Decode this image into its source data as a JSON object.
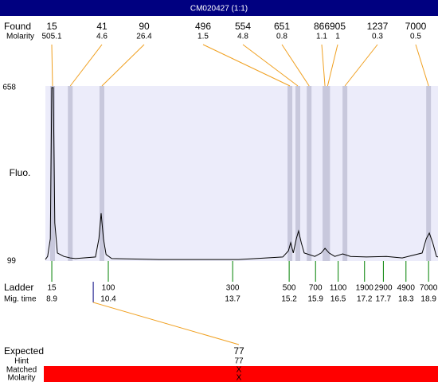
{
  "title": "CM020427 (1:1)",
  "found": {
    "label": "Found",
    "molarity_label": "Molarity",
    "sizes": [
      15,
      41,
      90,
      496,
      554,
      651,
      866,
      905,
      1237,
      7000
    ],
    "molarity": [
      505.1,
      4.6,
      26.4,
      1.5,
      4.8,
      0.8,
      1.1,
      1,
      0.3,
      0.5
    ],
    "times": [
      8.92,
      9.39,
      10.23,
      15.22,
      15.43,
      15.73,
      16.15,
      16.22,
      16.68,
      18.9
    ]
  },
  "chart_data": {
    "type": "line",
    "y_label": "Fluo.",
    "xlim": [
      8.73,
      19.15
    ],
    "ylim": [
      99,
      658
    ],
    "yticks": [
      99,
      658
    ],
    "series": [
      {
        "color": "#000000",
        "x": [
          8.73,
          8.79,
          8.86,
          8.9,
          8.94,
          8.98,
          9.05,
          9.22,
          9.39,
          9.53,
          10.06,
          10.15,
          10.21,
          10.27,
          10.34,
          10.49,
          11.75,
          13.86,
          15.03,
          15.18,
          15.24,
          15.31,
          15.39,
          15.45,
          15.52,
          15.6,
          15.88,
          16.05,
          16.15,
          16.26,
          16.41,
          16.62,
          16.83,
          17.25,
          17.78,
          18.2,
          18.73,
          18.84,
          18.92,
          19.01,
          19.11,
          19.15
        ],
        "values": [
          104,
          114,
          171,
          658,
          658,
          222,
          125,
          114,
          109,
          107,
          112,
          171,
          253,
          171,
          120,
          107,
          104,
          104,
          112,
          132,
          158,
          125,
          171,
          196,
          158,
          125,
          114,
          125,
          140,
          125,
          114,
          122,
          114,
          112,
          114,
          109,
          125,
          171,
          189,
          158,
          114,
          112
        ]
      }
    ]
  },
  "ladder": {
    "label": "Ladder",
    "time_label": "Mig. time",
    "sizes": [
      15,
      100,
      300,
      500,
      700,
      1100,
      1900,
      2900,
      4900,
      7000
    ],
    "times": [
      8.9,
      10.4,
      13.7,
      15.2,
      15.9,
      16.5,
      17.2,
      17.7,
      18.3,
      18.9
    ]
  },
  "marker": {
    "time": 10.0
  },
  "result": {
    "expected_label": "Expected",
    "expected": 77,
    "hint_label": "Hint",
    "hint": 77,
    "matched_label": "Matched",
    "matched": "X",
    "molarity_label": "Molarity",
    "molarity": "X"
  }
}
